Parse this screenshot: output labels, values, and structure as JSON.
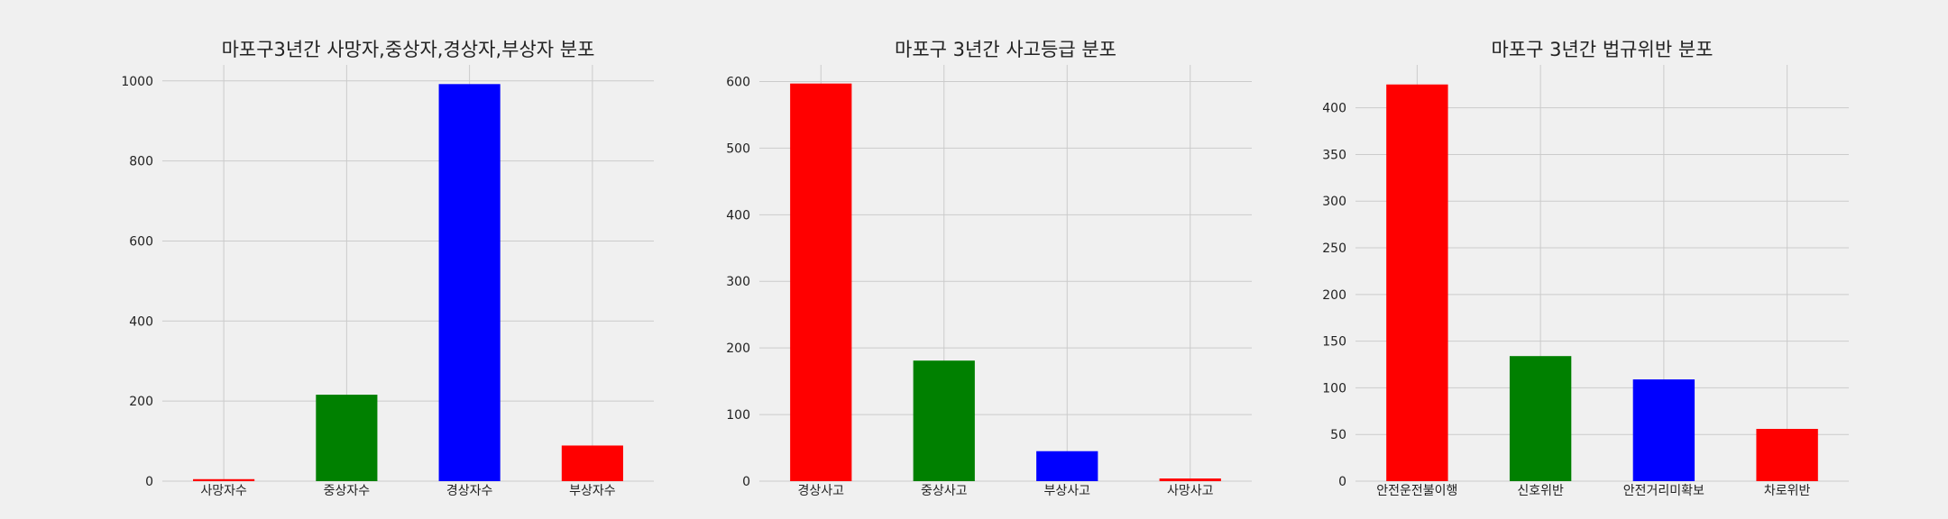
{
  "chart_data": [
    {
      "type": "bar",
      "title": "마포구3년간 사망자,중상자,경상자,부상자 분포",
      "categories": [
        "사망자수",
        "중상자수",
        "경상자수",
        "부상자수"
      ],
      "values": [
        5,
        216,
        992,
        89
      ],
      "colors": [
        "#ff0000",
        "#008000",
        "#0000ff",
        "#ff0000"
      ],
      "ylim": [
        0,
        1040
      ],
      "yticks": [
        0,
        200,
        400,
        600,
        800,
        1000
      ],
      "grid": true
    },
    {
      "type": "bar",
      "title": "마포구 3년간 사고등급 분포",
      "categories": [
        "경상사고",
        "중상사고",
        "부상사고",
        "사망사고"
      ],
      "values": [
        597,
        181,
        45,
        4
      ],
      "colors": [
        "#ff0000",
        "#008000",
        "#0000ff",
        "#ff0000"
      ],
      "ylim": [
        0,
        625
      ],
      "yticks": [
        0,
        100,
        200,
        300,
        400,
        500,
        600
      ],
      "grid": true
    },
    {
      "type": "bar",
      "title": "마포구 3년간 법규위반 분포",
      "categories": [
        "안전운전불이행",
        "신호위반",
        "안전거리미확보",
        "차로위반"
      ],
      "values": [
        425,
        134,
        109,
        56
      ],
      "colors": [
        "#ff0000",
        "#008000",
        "#0000ff",
        "#ff0000"
      ],
      "ylim": [
        0,
        446
      ],
      "yticks": [
        0,
        50,
        100,
        150,
        200,
        250,
        300,
        350,
        400
      ],
      "grid": true
    }
  ]
}
